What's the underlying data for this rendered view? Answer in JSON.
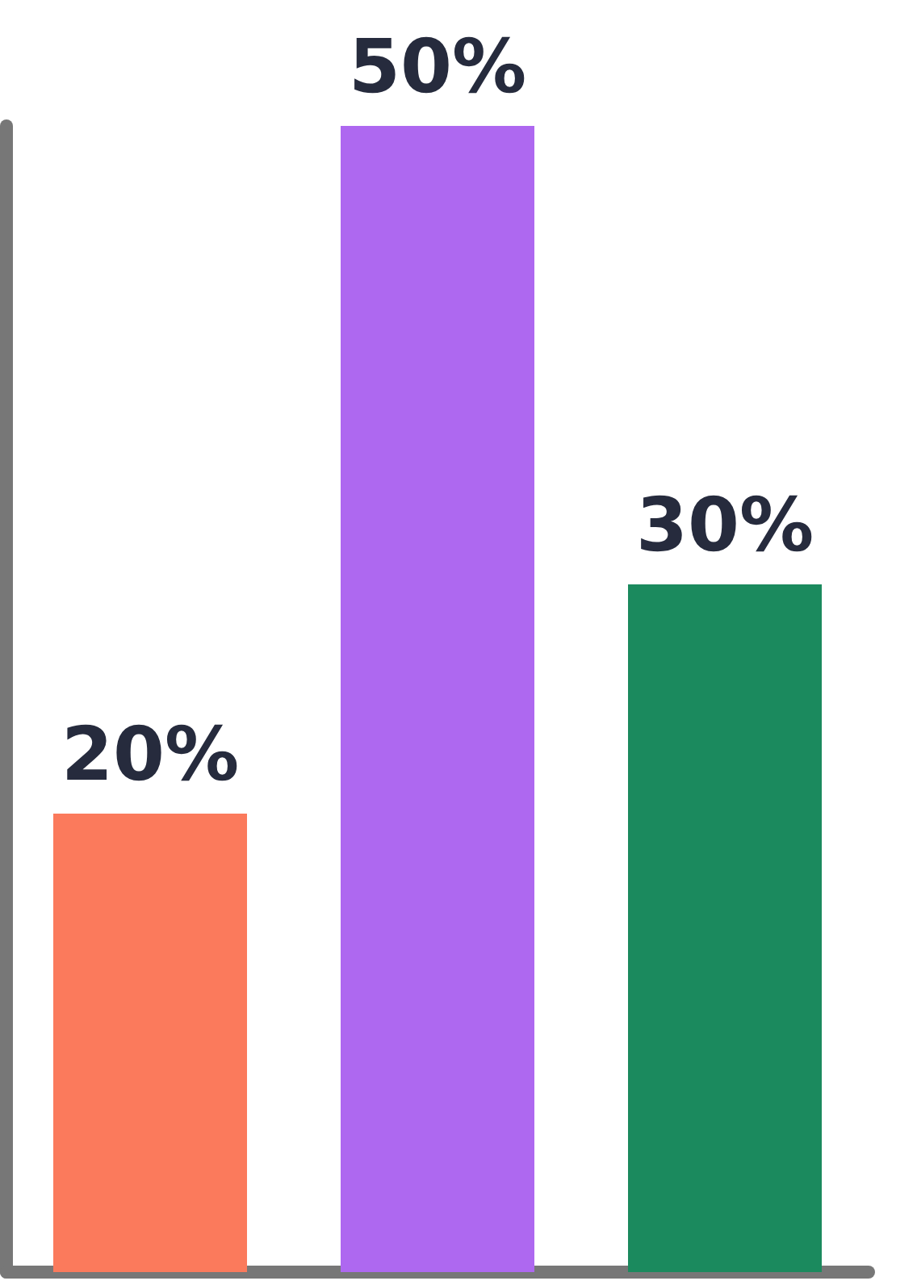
{
  "chart_data": {
    "type": "bar",
    "categories": [
      null,
      null,
      null
    ],
    "values": [
      20,
      50,
      30
    ],
    "colors": [
      "#fb7a5c",
      "#ae68f0",
      "#1b8a5e"
    ],
    "value_labels": [
      "20%",
      "50%",
      "30%"
    ],
    "ylim": [
      0,
      50
    ]
  }
}
